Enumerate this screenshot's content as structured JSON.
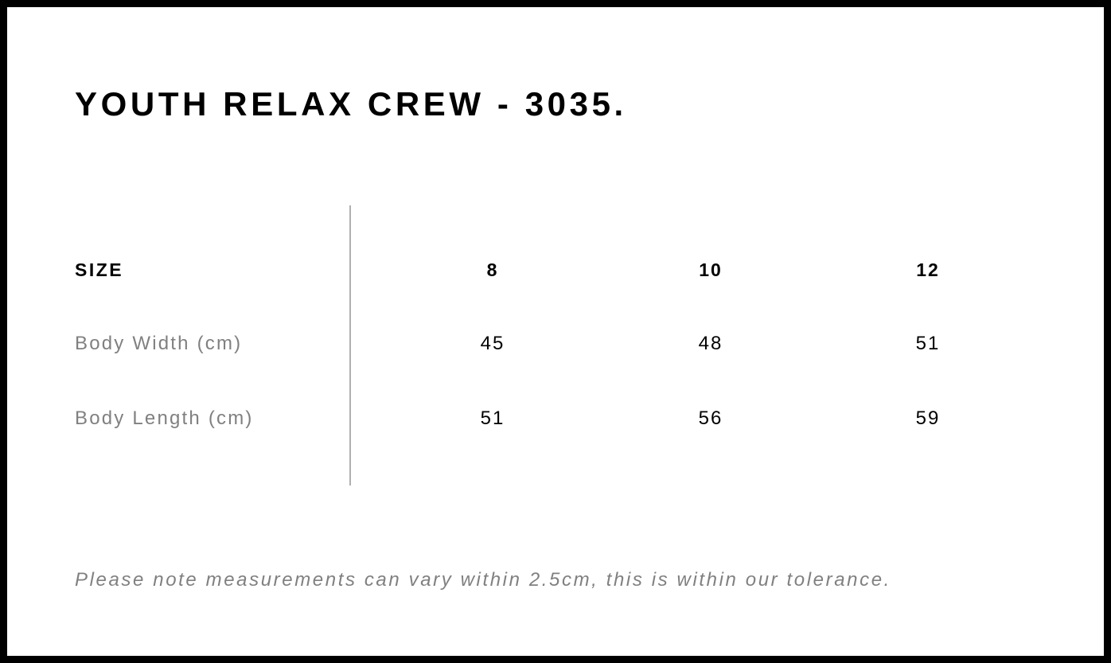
{
  "title": "YOUTH RELAX CREW - 3035.",
  "table": {
    "header_label": "SIZE",
    "sizes": [
      "8",
      "10",
      "12"
    ],
    "rows": [
      {
        "label": "Body Width (cm)",
        "values": [
          "45",
          "48",
          "51"
        ]
      },
      {
        "label": "Body Length (cm)",
        "values": [
          "51",
          "56",
          "59"
        ]
      }
    ]
  },
  "note": "Please note measurements can vary within 2.5cm, this is within our tolerance."
}
